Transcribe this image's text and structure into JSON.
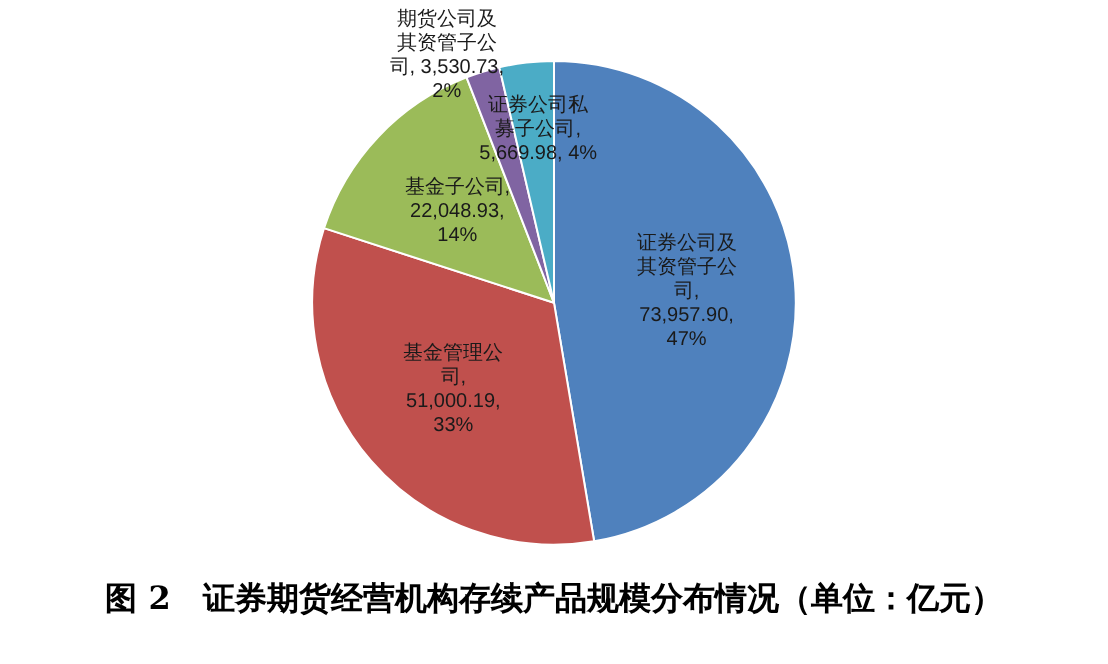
{
  "chart_data": {
    "type": "pie",
    "title": "图 2　证券期货经营机构存续产品规模分布情况（单位：亿元）",
    "categories": [
      "证券公司及其资管子公司",
      "基金管理公司",
      "基金子公司",
      "期货公司及其资管子公司",
      "证券公司私募子公司"
    ],
    "values": [
      73957.9,
      51000.19,
      22048.93,
      3530.73,
      5669.98
    ],
    "value_labels": [
      ", 73,957.90, 47%",
      ", 51,000.19, 33%",
      ", 22,048.93, 14%",
      ", 3,530.73, 2%",
      ", 5,669.98, 4%"
    ],
    "colors": [
      "#4f81bd",
      "#c0504d",
      "#9bbb59",
      "#8064a2",
      "#4bacc6"
    ],
    "legend": false
  }
}
